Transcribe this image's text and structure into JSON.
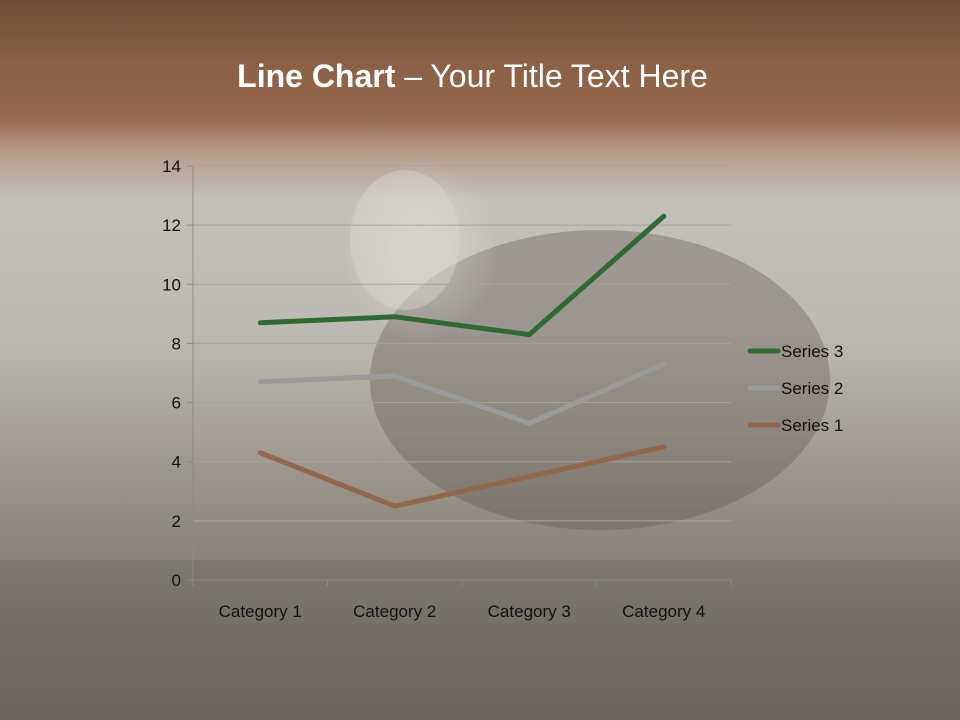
{
  "slide": {
    "title_bold": "Line Chart",
    "title_rest": " – Your Title Text Here"
  },
  "chart_data": {
    "type": "line",
    "title": "",
    "xlabel": "",
    "ylabel": "",
    "categories": [
      "Category 1",
      "Category 2",
      "Category 3",
      "Category 4"
    ],
    "ylim": [
      0,
      14
    ],
    "yticks": [
      0,
      2,
      4,
      6,
      8,
      10,
      12,
      14
    ],
    "grid": true,
    "legend_position": "right",
    "series": [
      {
        "name": "Series 1",
        "values": [
          4.3,
          2.5,
          3.5,
          4.5
        ],
        "color": "#94674b"
      },
      {
        "name": "Series 2",
        "values": [
          6.7,
          6.9,
          5.3,
          7.3
        ],
        "color": "#9b9b9b"
      },
      {
        "name": "Series 3",
        "values": [
          8.7,
          8.9,
          8.3,
          12.3
        ],
        "color": "#2f6a33"
      }
    ],
    "legend_order": [
      "Series 3",
      "Series 2",
      "Series 1"
    ]
  }
}
